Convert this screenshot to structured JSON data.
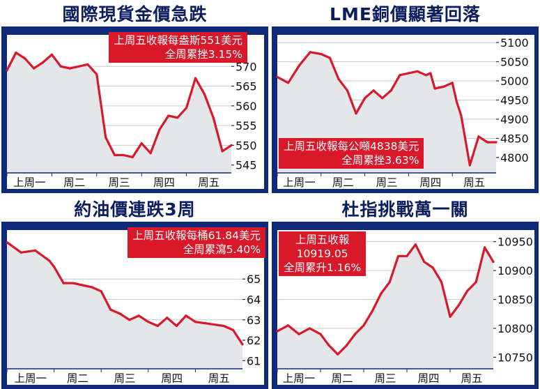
{
  "panels": [
    {
      "id": "gold",
      "title": "國際現貨金價急跌",
      "callout": [
        "上周五收報每盎斯551美元",
        "全周累挫3.15%"
      ]
    },
    {
      "id": "copper",
      "title": "LME銅價顯著回落",
      "callout": [
        "上周五收報每公噸4838美元",
        "全周累挫3.63%"
      ]
    },
    {
      "id": "oil",
      "title": "約油價連跌3周",
      "callout": [
        "上周五收報每桶61.84美元",
        "全周累瀉5.40%"
      ]
    },
    {
      "id": "stocks",
      "title": "杜指挑戰萬一關",
      "callout": [
        "上周五收報",
        "10919.05",
        "全周累升1.16%"
      ]
    }
  ],
  "chart_data": [
    {
      "type": "area",
      "title": "國際現貨金價急跌",
      "categories": [
        "上周一",
        "周二",
        "周三",
        "周四",
        "周五"
      ],
      "yticks": [
        545,
        550,
        555,
        560,
        565,
        570
      ],
      "ylim": [
        543,
        578
      ],
      "x": [
        0,
        0.2,
        0.4,
        0.6,
        0.8,
        1.0,
        1.2,
        1.4,
        1.6,
        1.8,
        2.0,
        2.2,
        2.4,
        2.6,
        2.8,
        3.0,
        3.2,
        3.4,
        3.6,
        3.8,
        4.0,
        4.2,
        4.4,
        4.6,
        4.8,
        5.0
      ],
      "values": [
        569,
        573.5,
        572,
        569.5,
        571,
        573,
        570,
        569.5,
        570,
        570.5,
        568,
        552,
        547.5,
        547.5,
        547,
        550.5,
        548,
        554,
        557.5,
        557,
        559.5,
        567,
        563,
        557,
        548.5,
        550
      ],
      "line_color": "#d9182a",
      "fill_color": "#e4e6ea",
      "grid": true
    },
    {
      "type": "area",
      "title": "LME銅價顯著回落",
      "categories": [
        "上周一",
        "周二",
        "周三",
        "周四",
        "周五"
      ],
      "yticks": [
        4800,
        4850,
        4900,
        4950,
        5000,
        5050,
        5100
      ],
      "ylim": [
        4760,
        5120
      ],
      "x": [
        0,
        0.25,
        0.5,
        0.75,
        1.0,
        1.2,
        1.4,
        1.6,
        1.8,
        2.0,
        2.2,
        2.4,
        2.6,
        2.8,
        3.0,
        3.2,
        3.4,
        3.5,
        3.6,
        3.8,
        4.0,
        4.1,
        4.2,
        4.4,
        4.6,
        4.8,
        5.0
      ],
      "values": [
        5010,
        4995,
        5040,
        5075,
        5070,
        5060,
        5005,
        4975,
        4915,
        4955,
        4975,
        4955,
        4975,
        5015,
        5020,
        5025,
        5015,
        5020,
        4980,
        4985,
        4995,
        4945,
        4910,
        4780,
        4855,
        4840,
        4840
      ],
      "line_color": "#d9182a",
      "fill_color": "#e4e6ea",
      "grid": true
    },
    {
      "type": "area",
      "title": "約油價連跌3周",
      "categories": [
        "上周一",
        "周二",
        "周三",
        "周四",
        "周五"
      ],
      "yticks": [
        61,
        62,
        63,
        64,
        65
      ],
      "ylim": [
        60.6,
        67.4
      ],
      "x": [
        0,
        0.3,
        0.6,
        0.9,
        1.0,
        1.2,
        1.4,
        1.6,
        1.8,
        2.0,
        2.2,
        2.4,
        2.6,
        2.8,
        3.0,
        3.2,
        3.4,
        3.6,
        3.8,
        4.0,
        4.3,
        4.6,
        4.8,
        5.0
      ],
      "values": [
        66.8,
        66.3,
        66.4,
        65.9,
        65.6,
        64.8,
        64.8,
        64.7,
        64.6,
        64.4,
        63.5,
        63.3,
        63.0,
        63.2,
        62.9,
        62.7,
        63.1,
        62.7,
        63.2,
        62.9,
        62.8,
        62.7,
        62.5,
        61.8
      ],
      "line_color": "#d9182a",
      "fill_color": "#e4e6ea",
      "grid": true
    },
    {
      "type": "area",
      "title": "杜指挑戰萬一關",
      "categories": [
        "上周一",
        "周二",
        "周三",
        "周四",
        "周五"
      ],
      "yticks": [
        10750,
        10800,
        10850,
        10900,
        10950
      ],
      "ylim": [
        10730,
        10970
      ],
      "x": [
        0,
        0.25,
        0.5,
        0.75,
        1.0,
        1.2,
        1.4,
        1.6,
        1.8,
        2.0,
        2.2,
        2.4,
        2.6,
        2.8,
        3.0,
        3.2,
        3.4,
        3.6,
        3.8,
        4.0,
        4.2,
        4.4,
        4.6,
        4.8,
        5.0
      ],
      "values": [
        10795,
        10805,
        10790,
        10800,
        10790,
        10770,
        10755,
        10770,
        10790,
        10805,
        10830,
        10860,
        10880,
        10925,
        10925,
        10945,
        10915,
        10905,
        10880,
        10820,
        10840,
        10865,
        10880,
        10940,
        10915
      ],
      "line_color": "#d9182a",
      "fill_color": "#e4e6ea",
      "grid": true
    }
  ]
}
